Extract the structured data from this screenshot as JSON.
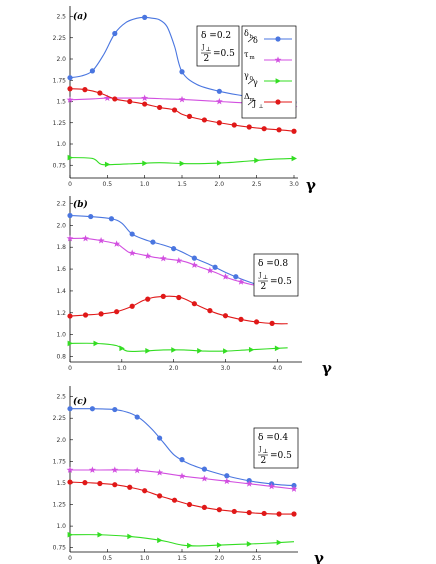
{
  "chart_data": [
    {
      "type": "line",
      "panel_label": "(a)",
      "x_var": "γ",
      "xlim": [
        0,
        3.0
      ],
      "x_ticks": [
        "0",
        "0.5",
        "1.0",
        "1.5",
        "2.0",
        "2.5",
        "3.0"
      ],
      "x_tick_values": [
        0,
        0.5,
        1.0,
        1.5,
        2.0,
        2.5,
        3.0
      ],
      "ylim": [
        0.6,
        2.6
      ],
      "y_ticks": [
        "0.75",
        "1.0",
        "1.25",
        "1.5",
        "1.75",
        "2.0",
        "2.25",
        "2.5"
      ],
      "y_tick_values": [
        0.75,
        1.0,
        1.25,
        1.5,
        1.75,
        2.0,
        2.25,
        2.5
      ],
      "annotation": {
        "delta_label": "δ =0.2",
        "ratio_num": "J",
        "ratio_sub": "⊥",
        "ratio_den": "2",
        "ratio_value": "=0.5"
      },
      "legend": {
        "entries": [
          {
            "num": "δ",
            "num_sub": "h",
            "den": "δ",
            "marker": "circle",
            "color": "#4a76e0"
          },
          {
            "num": "τ",
            "num_sub": "m",
            "den": "",
            "marker": "star",
            "color": "#d24fe0"
          },
          {
            "num": "γ",
            "num_sub": "0",
            "den": "γ",
            "marker": "triangle",
            "color": "#33dd22"
          },
          {
            "num": "Δ",
            "num_sub": "m",
            "den": "J",
            "den_sub": "⊥",
            "marker": "circle",
            "color": "#e01818"
          }
        ]
      },
      "series": [
        {
          "marker": "circle",
          "color": "#4a76e0",
          "x": [
            0,
            0.15,
            0.3,
            0.45,
            0.6,
            0.75,
            0.9,
            1.0,
            1.1,
            1.2,
            1.3,
            1.4,
            1.5,
            1.7,
            2.0,
            2.3,
            2.6,
            2.9,
            3.0
          ],
          "y": [
            1.78,
            1.8,
            1.86,
            2.05,
            2.3,
            2.43,
            2.48,
            2.49,
            2.48,
            2.46,
            2.38,
            2.15,
            1.85,
            1.7,
            1.62,
            1.57,
            1.53,
            1.5,
            1.49
          ],
          "marker_x": [
            0,
            0.3,
            0.6,
            1.0,
            1.5,
            2.0,
            2.5,
            3.0
          ]
        },
        {
          "marker": "star",
          "color": "#d24fe0",
          "x": [
            0,
            0.3,
            0.5,
            0.7,
            1.0,
            1.3,
            1.6,
            2.0,
            2.4,
            2.8,
            3.0
          ],
          "y": [
            1.52,
            1.53,
            1.54,
            1.54,
            1.54,
            1.53,
            1.52,
            1.5,
            1.48,
            1.45,
            1.43
          ],
          "marker_x": [
            0,
            0.5,
            1.0,
            1.5,
            2.0,
            2.5,
            3.0
          ]
        },
        {
          "marker": "triangle",
          "color": "#33dd22",
          "x": [
            0,
            0.3,
            0.42,
            0.6,
            0.9,
            1.2,
            1.5,
            1.8,
            2.1,
            2.4,
            2.7,
            3.0
          ],
          "y": [
            0.84,
            0.83,
            0.76,
            0.76,
            0.77,
            0.78,
            0.77,
            0.77,
            0.78,
            0.8,
            0.82,
            0.83
          ],
          "marker_x": [
            0,
            0.5,
            1.0,
            1.5,
            2.0,
            2.5,
            3.0
          ]
        },
        {
          "marker": "circle",
          "color": "#e01818",
          "x": [
            0,
            0.2,
            0.4,
            0.6,
            0.8,
            1.0,
            1.2,
            1.4,
            1.5,
            1.7,
            2.0,
            2.3,
            2.6,
            2.9,
            3.0
          ],
          "y": [
            1.65,
            1.64,
            1.6,
            1.53,
            1.5,
            1.47,
            1.43,
            1.4,
            1.35,
            1.3,
            1.25,
            1.21,
            1.18,
            1.16,
            1.15
          ],
          "marker_x": [
            0,
            0.2,
            0.4,
            0.6,
            0.8,
            1.0,
            1.2,
            1.4,
            1.6,
            1.8,
            2.0,
            2.2,
            2.4,
            2.6,
            2.8,
            3.0
          ]
        }
      ]
    },
    {
      "type": "line",
      "panel_label": "(b)",
      "x_var": "γ",
      "xlim": [
        0,
        4.4
      ],
      "x_ticks": [
        "0",
        "1.0",
        "2.0",
        "3.0",
        "4.0"
      ],
      "x_tick_values": [
        0,
        1.0,
        2.0,
        3.0,
        4.0
      ],
      "ylim": [
        0.75,
        2.25
      ],
      "y_ticks": [
        "0.8",
        "1.0",
        "1.2",
        "1.4",
        "1.6",
        "1.8",
        "2.0",
        "2.2"
      ],
      "y_tick_values": [
        0.8,
        1.0,
        1.2,
        1.4,
        1.6,
        1.8,
        2.0,
        2.2
      ],
      "annotation": {
        "delta_label": "δ =0.8",
        "ratio_num": "J",
        "ratio_sub": "⊥",
        "ratio_den": "2",
        "ratio_value": "=0.5"
      },
      "series": [
        {
          "marker": "circle",
          "color": "#4a76e0",
          "x": [
            0,
            0.4,
            0.8,
            1.0,
            1.2,
            1.5,
            1.8,
            2.1,
            2.4,
            2.7,
            3.0,
            3.3,
            3.6,
            3.9,
            4.2
          ],
          "y": [
            2.09,
            2.08,
            2.06,
            2.02,
            1.92,
            1.86,
            1.82,
            1.77,
            1.7,
            1.64,
            1.57,
            1.51,
            1.46,
            1.43,
            1.4
          ],
          "marker_x": [
            0,
            0.4,
            0.8,
            1.2,
            1.6,
            2.0,
            2.4,
            2.8,
            3.2,
            3.6,
            4.0,
            4.2
          ]
        },
        {
          "marker": "star",
          "color": "#d24fe0",
          "x": [
            0,
            0.3,
            0.6,
            0.9,
            1.0,
            1.15,
            1.3,
            1.6,
            1.9,
            2.2,
            2.5,
            2.8,
            3.1,
            3.4,
            3.7,
            4.0,
            4.2
          ],
          "y": [
            1.88,
            1.88,
            1.86,
            1.83,
            1.8,
            1.75,
            1.74,
            1.71,
            1.69,
            1.67,
            1.62,
            1.57,
            1.51,
            1.47,
            1.44,
            1.41,
            1.4
          ],
          "marker_x": [
            0,
            0.3,
            0.6,
            0.9,
            1.2,
            1.5,
            1.8,
            2.1,
            2.4,
            2.7,
            3.0,
            3.3,
            3.6,
            3.9,
            4.2
          ]
        },
        {
          "marker": "triangle",
          "color": "#33dd22",
          "x": [
            0,
            0.5,
            0.9,
            1.1,
            1.4,
            1.8,
            2.2,
            2.6,
            3.0,
            3.4,
            3.8,
            4.2
          ],
          "y": [
            0.92,
            0.92,
            0.9,
            0.85,
            0.85,
            0.86,
            0.86,
            0.85,
            0.85,
            0.86,
            0.87,
            0.88
          ],
          "marker_x": [
            0,
            0.5,
            1.0,
            1.5,
            2.0,
            2.5,
            3.0,
            3.5,
            4.0
          ]
        },
        {
          "marker": "circle",
          "color": "#e01818",
          "x": [
            0,
            0.3,
            0.6,
            0.9,
            1.2,
            1.4,
            1.6,
            1.8,
            2.0,
            2.2,
            2.5,
            2.8,
            3.1,
            3.4,
            3.7,
            4.0,
            4.2
          ],
          "y": [
            1.17,
            1.18,
            1.19,
            1.21,
            1.26,
            1.31,
            1.34,
            1.35,
            1.35,
            1.33,
            1.26,
            1.2,
            1.16,
            1.13,
            1.11,
            1.1,
            1.1
          ],
          "marker_x": [
            0,
            0.3,
            0.6,
            0.9,
            1.2,
            1.5,
            1.8,
            2.1,
            2.4,
            2.7,
            3.0,
            3.3,
            3.6,
            3.9
          ]
        }
      ]
    },
    {
      "type": "line",
      "panel_label": "(c)",
      "x_var": "γ",
      "xlim": [
        0,
        3.0
      ],
      "x_ticks": [
        "0",
        "0.5",
        "1.0",
        "1.5",
        "2.0",
        "2.5"
      ],
      "x_tick_values": [
        0,
        0.5,
        1.0,
        1.5,
        2.0,
        2.5
      ],
      "ylim": [
        0.7,
        2.6
      ],
      "y_ticks": [
        "0.75",
        "1.0",
        "1.25",
        "1.5",
        "1.75",
        "2.0",
        "2.25",
        "2.5"
      ],
      "y_tick_values": [
        0.75,
        1.0,
        1.25,
        1.5,
        1.75,
        2.0,
        2.25,
        2.5
      ],
      "annotation": {
        "delta_label": "δ =0.4",
        "ratio_num": "J",
        "ratio_sub": "⊥",
        "ratio_den": "2",
        "ratio_value": "=0.5"
      },
      "series": [
        {
          "marker": "circle",
          "color": "#4a76e0",
          "x": [
            0,
            0.3,
            0.6,
            0.8,
            0.95,
            1.1,
            1.25,
            1.4,
            1.6,
            1.9,
            2.2,
            2.5,
            2.8,
            3.0
          ],
          "y": [
            2.36,
            2.36,
            2.35,
            2.31,
            2.24,
            2.12,
            1.97,
            1.82,
            1.72,
            1.63,
            1.56,
            1.51,
            1.48,
            1.47
          ],
          "marker_x": [
            0,
            0.3,
            0.6,
            0.9,
            1.2,
            1.5,
            1.8,
            2.1,
            2.4,
            2.7,
            3.0
          ]
        },
        {
          "marker": "star",
          "color": "#d24fe0",
          "x": [
            0,
            0.4,
            0.8,
            1.0,
            1.2,
            1.5,
            1.8,
            2.1,
            2.4,
            2.7,
            3.0
          ],
          "y": [
            1.65,
            1.65,
            1.65,
            1.64,
            1.62,
            1.58,
            1.55,
            1.52,
            1.49,
            1.46,
            1.43
          ],
          "marker_x": [
            0,
            0.3,
            0.6,
            0.9,
            1.2,
            1.5,
            1.8,
            2.1,
            2.4,
            2.7,
            3.0
          ]
        },
        {
          "marker": "triangle",
          "color": "#33dd22",
          "x": [
            0,
            0.4,
            0.8,
            1.1,
            1.3,
            1.5,
            1.7,
            2.0,
            2.3,
            2.6,
            3.0
          ],
          "y": [
            0.9,
            0.9,
            0.88,
            0.85,
            0.82,
            0.78,
            0.77,
            0.78,
            0.79,
            0.8,
            0.82
          ],
          "marker_x": [
            0,
            0.4,
            0.8,
            1.2,
            1.6,
            2.0,
            2.4,
            2.8
          ]
        },
        {
          "marker": "circle",
          "color": "#e01818",
          "x": [
            0,
            0.3,
            0.6,
            0.8,
            1.0,
            1.2,
            1.4,
            1.6,
            1.9,
            2.2,
            2.5,
            2.8,
            3.0
          ],
          "y": [
            1.51,
            1.5,
            1.48,
            1.45,
            1.41,
            1.35,
            1.3,
            1.25,
            1.2,
            1.17,
            1.15,
            1.14,
            1.14
          ],
          "marker_x": [
            0,
            0.2,
            0.4,
            0.6,
            0.8,
            1.0,
            1.2,
            1.4,
            1.6,
            1.8,
            2.0,
            2.2,
            2.4,
            2.6,
            2.8,
            3.0
          ]
        }
      ]
    }
  ]
}
